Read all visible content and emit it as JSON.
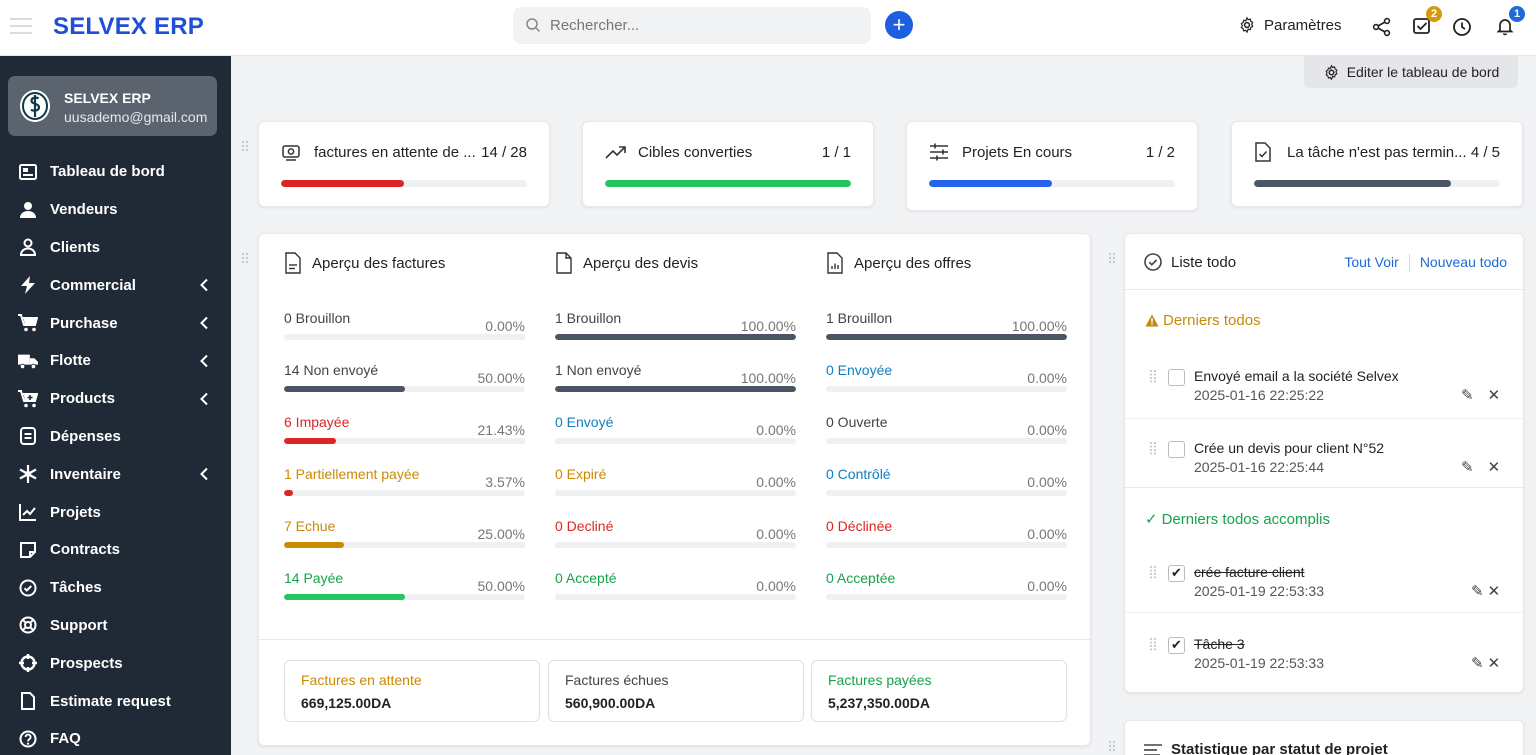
{
  "header": {
    "brand": "SELVEX ERP",
    "search_placeholder": "Rechercher...",
    "settings_label": "Paramètres",
    "tasks_badge": "2",
    "notifications_badge": "1"
  },
  "sidebar": {
    "user_name": "SELVEX ERP",
    "user_email": "uusademo@gmail.com",
    "items": [
      {
        "label": "Tableau de bord",
        "icon": "dashboard-icon",
        "submenu": false
      },
      {
        "label": "Vendeurs",
        "icon": "user-icon",
        "submenu": false
      },
      {
        "label": "Clients",
        "icon": "user-outline-icon",
        "submenu": false
      },
      {
        "label": "Commercial",
        "icon": "bolt-icon",
        "submenu": true
      },
      {
        "label": "Purchase",
        "icon": "cart-icon",
        "submenu": true
      },
      {
        "label": "Flotte",
        "icon": "truck-icon",
        "submenu": true
      },
      {
        "label": "Products",
        "icon": "cart-plus-icon",
        "submenu": true
      },
      {
        "label": "Dépenses",
        "icon": "receipt-icon",
        "submenu": false
      },
      {
        "label": "Inventaire",
        "icon": "snowflake-icon",
        "submenu": true
      },
      {
        "label": "Projets",
        "icon": "chart-icon",
        "submenu": false
      },
      {
        "label": "Contracts",
        "icon": "note-icon",
        "submenu": false
      },
      {
        "label": "Tâches",
        "icon": "check-circle-icon",
        "submenu": false
      },
      {
        "label": "Support",
        "icon": "lifebuoy-icon",
        "submenu": false
      },
      {
        "label": "Prospects",
        "icon": "crosshair-icon",
        "submenu": false
      },
      {
        "label": "Estimate request",
        "icon": "file-icon",
        "submenu": false
      },
      {
        "label": "FAQ",
        "icon": "question-icon",
        "submenu": false
      }
    ]
  },
  "main": {
    "edit_dashboard_label": "Editer le tableau de bord",
    "stats": [
      {
        "label": "factures en attente de ...",
        "value": "14 / 28",
        "progress": 0.5,
        "color": "#dc2626",
        "icon": "invoice-icon"
      },
      {
        "label": "Cibles converties",
        "value": "1 / 1",
        "progress": 1.0,
        "color": "#22c55e",
        "icon": "trend-icon"
      },
      {
        "label": "Projets En cours",
        "value": "1 / 2",
        "progress": 0.5,
        "color": "#2563eb",
        "icon": "sliders-icon"
      },
      {
        "label": "La tâche n'est pas termin...",
        "value": "4 / 5",
        "progress": 0.8,
        "color": "#4b5563",
        "icon": "file-check-icon"
      }
    ],
    "overview": {
      "columns": [
        {
          "title": "Aperçu des factures",
          "rows": [
            {
              "label": "0 Brouillon",
              "pct": "0.00%",
              "value": 0.0,
              "color": "#444444",
              "fill": "#4b5563"
            },
            {
              "label": "14 Non envoyé",
              "pct": "50.00%",
              "value": 0.5,
              "color": "#444444",
              "fill": "#4b5563"
            },
            {
              "label": "6 Impayée",
              "pct": "21.43%",
              "value": 0.2143,
              "color": "#dc2626",
              "fill": "#dc2626"
            },
            {
              "label": "1 Partiellement payée",
              "pct": "3.57%",
              "value": 0.0357,
              "color": "#ca8a04",
              "fill": "#dc2626"
            },
            {
              "label": "7 Echue",
              "pct": "25.00%",
              "value": 0.25,
              "color": "#ca8a04",
              "fill": "#ca8a04"
            },
            {
              "label": "14 Payée",
              "pct": "50.00%",
              "value": 0.5,
              "color": "#16a34a",
              "fill": "#22c55e"
            }
          ]
        },
        {
          "title": "Aperçu des devis",
          "rows": [
            {
              "label": "1 Brouillon",
              "pct": "100.00%",
              "value": 1.0,
              "color": "#444444",
              "fill": "#4b5563"
            },
            {
              "label": "1 Non envoyé",
              "pct": "100.00%",
              "value": 1.0,
              "color": "#444444",
              "fill": "#4b5563"
            },
            {
              "label": "0 Envoyé",
              "pct": "0.00%",
              "value": 0.0,
              "color": "#0e7fc0",
              "fill": "#0e7fc0"
            },
            {
              "label": "0 Expiré",
              "pct": "0.00%",
              "value": 0.0,
              "color": "#ca8a04",
              "fill": "#ca8a04"
            },
            {
              "label": "0 Decliné",
              "pct": "0.00%",
              "value": 0.0,
              "color": "#dc2626",
              "fill": "#dc2626"
            },
            {
              "label": "0 Accepté",
              "pct": "0.00%",
              "value": 0.0,
              "color": "#16a34a",
              "fill": "#22c55e"
            }
          ]
        },
        {
          "title": "Aperçu des offres",
          "rows": [
            {
              "label": "1 Brouillon",
              "pct": "100.00%",
              "value": 1.0,
              "color": "#444444",
              "fill": "#4b5563"
            },
            {
              "label": "0 Envoyée",
              "pct": "0.00%",
              "value": 0.0,
              "color": "#0e7fc0",
              "fill": "#0e7fc0"
            },
            {
              "label": "0 Ouverte",
              "pct": "0.00%",
              "value": 0.0,
              "color": "#444444",
              "fill": "#4b5563"
            },
            {
              "label": "0 Contrôlé",
              "pct": "0.00%",
              "value": 0.0,
              "color": "#0e7fc0",
              "fill": "#0e7fc0"
            },
            {
              "label": "0 Déclinée",
              "pct": "0.00%",
              "value": 0.0,
              "color": "#dc2626",
              "fill": "#dc2626"
            },
            {
              "label": "0 Acceptée",
              "pct": "0.00%",
              "value": 0.0,
              "color": "#16a34a",
              "fill": "#22c55e"
            }
          ]
        }
      ],
      "summary": [
        {
          "label": "Factures en attente",
          "value": "669,125.00DA",
          "color": "#ca8a04"
        },
        {
          "label": "Factures échues",
          "value": "560,900.00DA",
          "color": "#444444"
        },
        {
          "label": "Factures payées",
          "value": "5,237,350.00DA",
          "color": "#16a34a"
        }
      ]
    },
    "todo": {
      "title": "Liste todo",
      "see_all": "Tout Voir",
      "new_todo": "Nouveau todo",
      "latest_title": "Derniers todos",
      "done_title": "Derniers todos accomplis",
      "latest": [
        {
          "text": "Envoyé email a la société Selvex",
          "date": "2025-01-16 22:25:22"
        },
        {
          "text": "Crée un devis pour client N°52",
          "date": "2025-01-16 22:25:44"
        }
      ],
      "done": [
        {
          "text": "crée facture client",
          "date": "2025-01-19 22:53:33"
        },
        {
          "text": "Tâche 3",
          "date": "2025-01-19 22:53:33"
        }
      ]
    },
    "project_stats_title": "Statistique par statut de projet"
  }
}
